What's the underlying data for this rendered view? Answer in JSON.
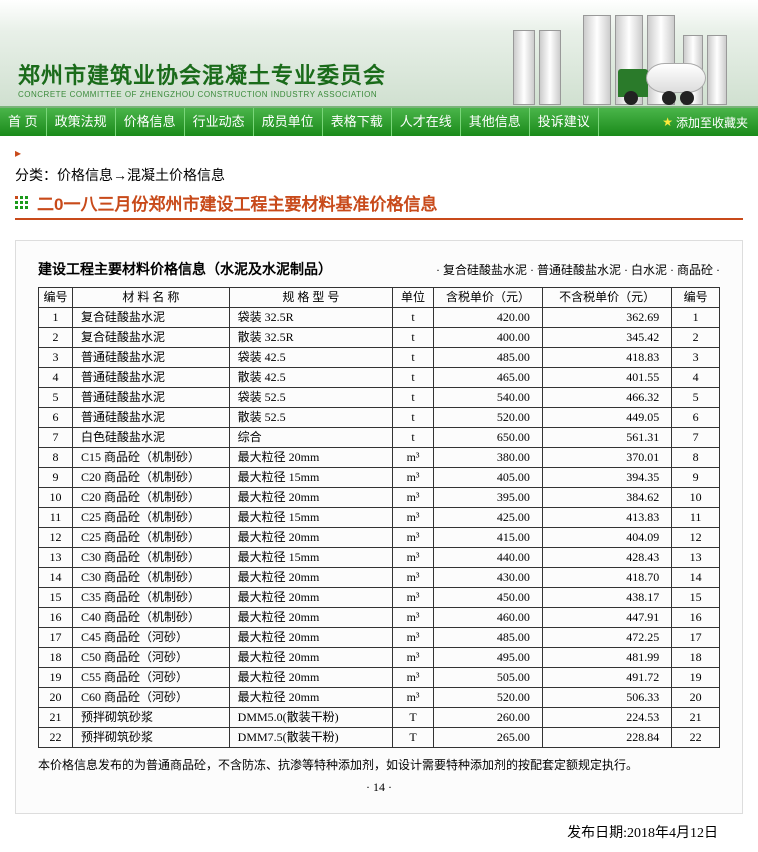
{
  "header": {
    "title": "郑州市建筑业协会混凝土专业委员会",
    "subtitle": "CONCRETE COMMITTEE OF ZHENGZHOU CONSTRUCTION INDUSTRY ASSOCIATION"
  },
  "nav": {
    "items": [
      "首 页",
      "政策法规",
      "价格信息",
      "行业动态",
      "成员单位",
      "表格下载",
      "人才在线",
      "其他信息",
      "投诉建议"
    ],
    "fav": "添加至收藏夹"
  },
  "breadcrumb": "分类：价格信息→混凝土价格信息",
  "articleTitle": "二0一八三月份郑州市建设工程主要材料基准价格信息",
  "doc": {
    "title": "建设工程主要材料价格信息（水泥及水泥制品）",
    "categories": "· 复合硅酸盐水泥 · 普通硅酸盐水泥 · 白水泥 · 商品砼 ·",
    "columns": [
      "编号",
      "材 料 名 称",
      "规 格 型 号",
      "单位",
      "含税单价（元）",
      "不含税单价（元）",
      "编号"
    ],
    "rows": [
      [
        "1",
        "复合硅酸盐水泥",
        "袋装 32.5R",
        "t",
        "420.00",
        "362.69",
        "1"
      ],
      [
        "2",
        "复合硅酸盐水泥",
        "散装 32.5R",
        "t",
        "400.00",
        "345.42",
        "2"
      ],
      [
        "3",
        "普通硅酸盐水泥",
        "袋装 42.5",
        "t",
        "485.00",
        "418.83",
        "3"
      ],
      [
        "4",
        "普通硅酸盐水泥",
        "散装 42.5",
        "t",
        "465.00",
        "401.55",
        "4"
      ],
      [
        "5",
        "普通硅酸盐水泥",
        "袋装 52.5",
        "t",
        "540.00",
        "466.32",
        "5"
      ],
      [
        "6",
        "普通硅酸盐水泥",
        "散装 52.5",
        "t",
        "520.00",
        "449.05",
        "6"
      ],
      [
        "7",
        "白色硅酸盐水泥",
        "综合",
        "t",
        "650.00",
        "561.31",
        "7"
      ],
      [
        "8",
        "C15 商品砼（机制砂）",
        "最大粒径 20mm",
        "m³",
        "380.00",
        "370.01",
        "8"
      ],
      [
        "9",
        "C20 商品砼（机制砂）",
        "最大粒径 15mm",
        "m³",
        "405.00",
        "394.35",
        "9"
      ],
      [
        "10",
        "C20 商品砼（机制砂）",
        "最大粒径 20mm",
        "m³",
        "395.00",
        "384.62",
        "10"
      ],
      [
        "11",
        "C25 商品砼（机制砂）",
        "最大粒径 15mm",
        "m³",
        "425.00",
        "413.83",
        "11"
      ],
      [
        "12",
        "C25 商品砼（机制砂）",
        "最大粒径 20mm",
        "m³",
        "415.00",
        "404.09",
        "12"
      ],
      [
        "13",
        "C30 商品砼（机制砂）",
        "最大粒径 15mm",
        "m³",
        "440.00",
        "428.43",
        "13"
      ],
      [
        "14",
        "C30 商品砼（机制砂）",
        "最大粒径 20mm",
        "m³",
        "430.00",
        "418.70",
        "14"
      ],
      [
        "15",
        "C35 商品砼（机制砂）",
        "最大粒径 20mm",
        "m³",
        "450.00",
        "438.17",
        "15"
      ],
      [
        "16",
        "C40 商品砼（机制砂）",
        "最大粒径 20mm",
        "m³",
        "460.00",
        "447.91",
        "16"
      ],
      [
        "17",
        "C45 商品砼（河砂）",
        "最大粒径 20mm",
        "m³",
        "485.00",
        "472.25",
        "17"
      ],
      [
        "18",
        "C50 商品砼（河砂）",
        "最大粒径 20mm",
        "m³",
        "495.00",
        "481.99",
        "18"
      ],
      [
        "19",
        "C55 商品砼（河砂）",
        "最大粒径 20mm",
        "m³",
        "505.00",
        "491.72",
        "19"
      ],
      [
        "20",
        "C60 商品砼（河砂）",
        "最大粒径 20mm",
        "m³",
        "520.00",
        "506.33",
        "20"
      ],
      [
        "21",
        "预拌砌筑砂浆",
        "DMM5.0(散装干粉)",
        "T",
        "260.00",
        "224.53",
        "21"
      ],
      [
        "22",
        "预拌砌筑砂浆",
        "DMM7.5(散装干粉)",
        "T",
        "265.00",
        "228.84",
        "22"
      ]
    ],
    "note": "本价格信息发布的为普通商品砼，不含防冻、抗渗等特种添加剂，如设计需要特种添加剂的按配套定额规定执行。",
    "page": "· 14 ·"
  },
  "pubDate": "发布日期:2018年4月12日"
}
